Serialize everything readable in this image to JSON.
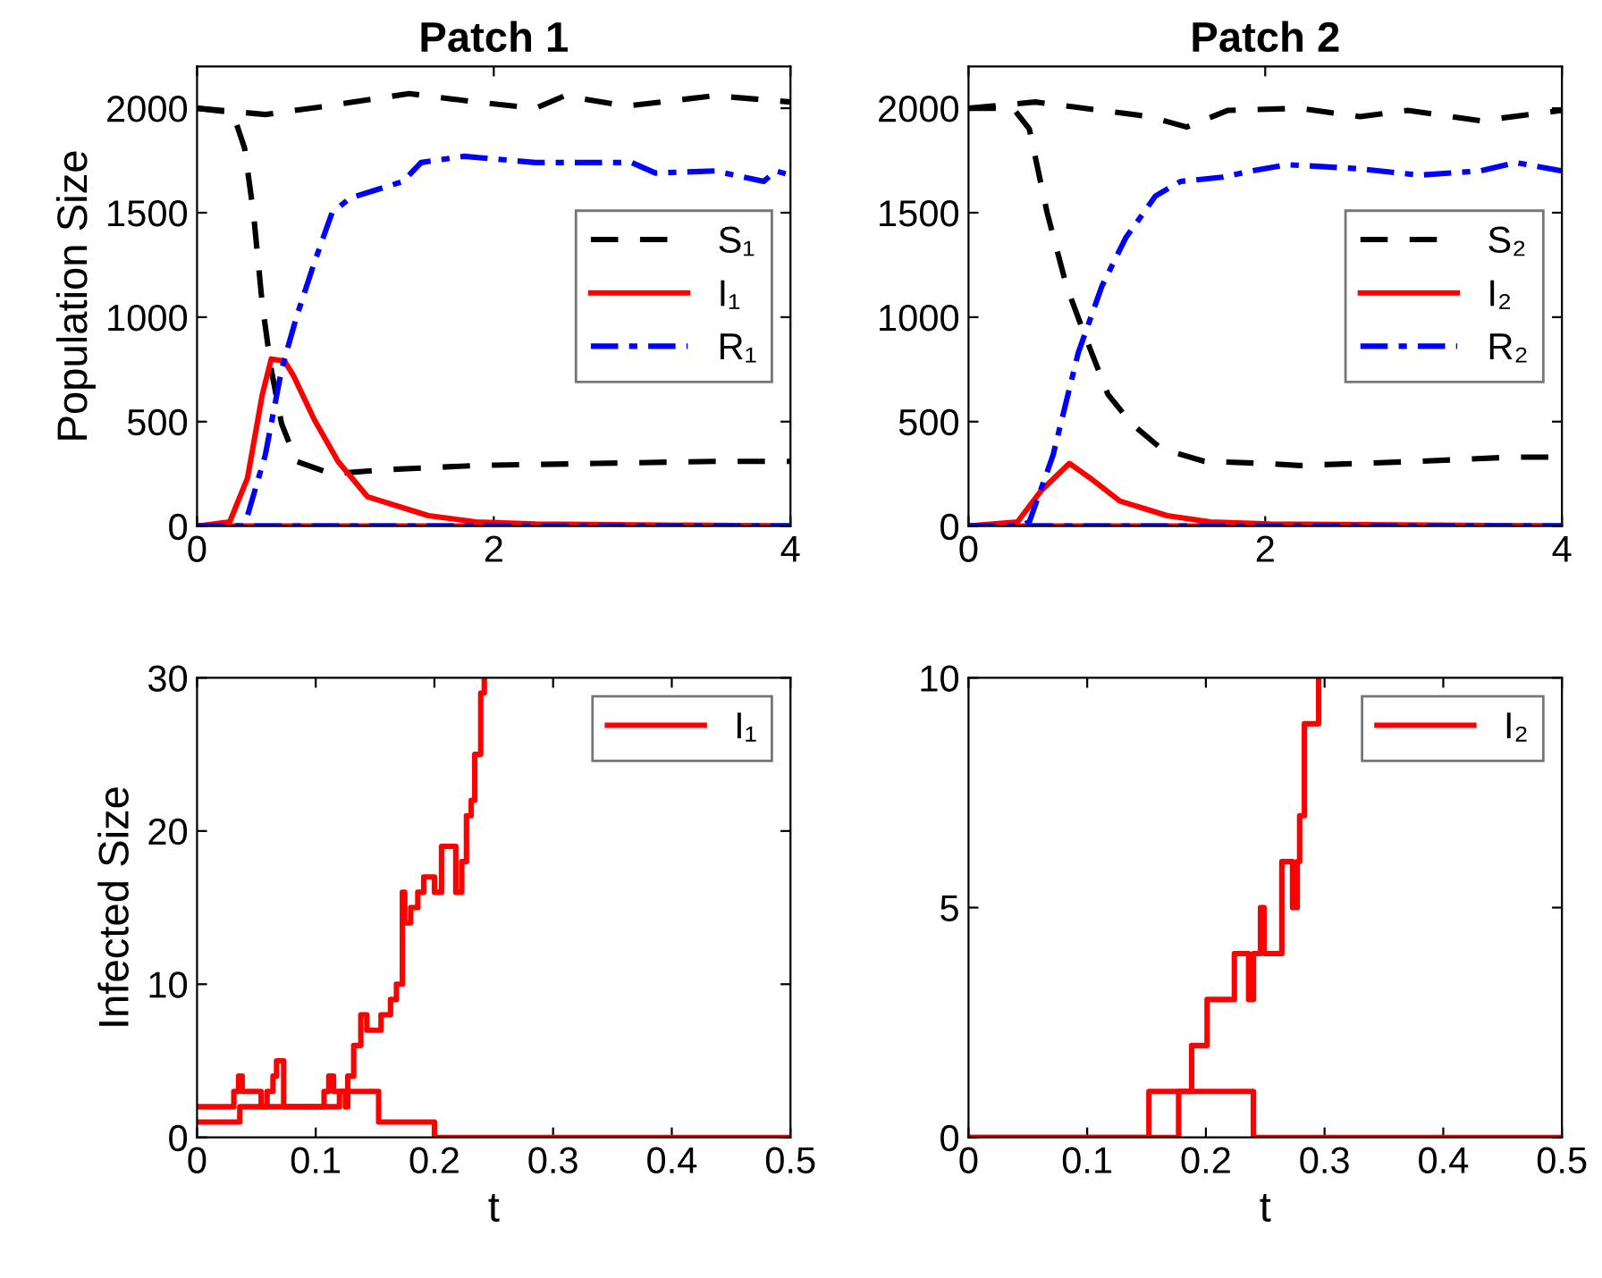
{
  "chart_data": [
    {
      "type": "line",
      "title": "Patch 1",
      "ylabel": "Population Size",
      "xlim": [
        0,
        4
      ],
      "ylim": [
        0,
        2200
      ],
      "xticks": [
        0,
        2,
        4
      ],
      "yticks": [
        0,
        500,
        1000,
        1500,
        2000
      ],
      "grid": false,
      "legend": "right",
      "series": [
        {
          "name": "S₁",
          "color": "#000000",
          "line_style": "dashed",
          "x": [
            0,
            0.24,
            0.32,
            0.38,
            0.44,
            0.5,
            0.57,
            0.67,
            0.91,
            1.27,
            1.88,
            2.69,
            3.49,
            4
          ],
          "values": [
            2000,
            1980,
            1810,
            1500,
            1060,
            750,
            490,
            310,
            250,
            270,
            290,
            300,
            310,
            310
          ]
        },
        {
          "name": "I₁",
          "color": "#ff0000",
          "line_style": "solid",
          "x": [
            0,
            0.22,
            0.34,
            0.44,
            0.5,
            0.59,
            0.65,
            0.79,
            0.95,
            1.15,
            1.56,
            1.88,
            2.28,
            4
          ],
          "values": [
            0,
            20,
            230,
            630,
            800,
            790,
            720,
            510,
            310,
            140,
            50,
            20,
            10,
            0
          ]
        },
        {
          "name": "R₁",
          "color": "#0000ff",
          "line_style": "dashdot",
          "x": [
            0,
            0.3,
            0.34,
            0.46,
            0.57,
            0.67,
            0.79,
            0.91,
            1.03,
            1.39,
            1.51,
            1.8,
            2.28,
            2.93,
            3.09,
            3.49,
            3.82,
            3.9,
            4
          ],
          "values": [
            0,
            0,
            50,
            340,
            750,
            1000,
            1260,
            1500,
            1570,
            1650,
            1740,
            1770,
            1740,
            1740,
            1690,
            1700,
            1650,
            1700,
            1680
          ]
        },
        {
          "color": "#000000",
          "line_style": "dashed",
          "x": [
            0,
            0.46,
            0.87,
            1.43,
            1.88,
            2.28,
            2.48,
            2.89,
            3.49,
            4
          ],
          "values": [
            2000,
            1970,
            2010,
            2070,
            2030,
            2000,
            2060,
            2010,
            2060,
            2030
          ]
        },
        {
          "color": "#ff0000",
          "line_style": "solid",
          "x": [
            0,
            4
          ],
          "values": [
            0,
            0
          ]
        },
        {
          "color": "#0000ff",
          "line_style": "dashdot",
          "x": [
            0,
            4
          ],
          "values": [
            0,
            0
          ]
        }
      ]
    },
    {
      "type": "line",
      "title": "Patch 2",
      "xlim": [
        0,
        4
      ],
      "ylim": [
        0,
        2200
      ],
      "xticks": [
        0,
        2,
        4
      ],
      "yticks": [
        0,
        500,
        1000,
        1500,
        2000
      ],
      "grid": false,
      "legend": "right",
      "series": [
        {
          "name": "S₂",
          "color": "#000000",
          "line_style": "dashed",
          "x": [
            0,
            0.3,
            0.41,
            0.53,
            0.66,
            0.78,
            0.94,
            1.1,
            1.3,
            1.59,
            1.99,
            2.23,
            3.04,
            3.65,
            4
          ],
          "values": [
            2000,
            2000,
            1900,
            1500,
            1150,
            920,
            630,
            490,
            370,
            310,
            300,
            290,
            310,
            330,
            330
          ]
        },
        {
          "name": "I₂",
          "color": "#ff0000",
          "line_style": "solid",
          "x": [
            0,
            0.33,
            0.49,
            0.68,
            0.82,
            1.02,
            1.34,
            1.63,
            2.03,
            4
          ],
          "values": [
            0,
            20,
            170,
            300,
            230,
            120,
            50,
            20,
            10,
            0
          ]
        },
        {
          "name": "R₂",
          "color": "#0000ff",
          "line_style": "dashdot",
          "x": [
            0,
            0.35,
            0.41,
            0.57,
            0.74,
            0.9,
            1.06,
            1.26,
            1.43,
            1.71,
            1.91,
            2.15,
            2.64,
            3.04,
            3.45,
            3.69,
            4
          ],
          "values": [
            0,
            0,
            20,
            340,
            830,
            1150,
            1380,
            1580,
            1650,
            1670,
            1700,
            1730,
            1710,
            1680,
            1700,
            1740,
            1700
          ]
        },
        {
          "color": "#000000",
          "line_style": "dashed",
          "x": [
            0,
            0.45,
            1.22,
            1.47,
            1.75,
            2.23,
            2.64,
            2.96,
            3.45,
            4
          ],
          "values": [
            2000,
            2030,
            1960,
            1910,
            1990,
            2000,
            1960,
            1990,
            1940,
            1990
          ]
        },
        {
          "color": "#ff0000",
          "line_style": "solid",
          "x": [
            0,
            4
          ],
          "values": [
            0,
            0
          ]
        },
        {
          "color": "#0000ff",
          "line_style": "dashdot",
          "x": [
            0,
            4
          ],
          "values": [
            0,
            0
          ]
        }
      ]
    },
    {
      "type": "step",
      "xlabel": "t",
      "ylabel": "Infected Size",
      "xlim": [
        0,
        0.5
      ],
      "ylim": [
        0,
        30
      ],
      "xticks": [
        0,
        0.1,
        0.2,
        0.3,
        0.4,
        0.5
      ],
      "yticks": [
        0,
        10,
        20,
        30
      ],
      "grid": false,
      "legend": "top right",
      "series": [
        {
          "name": "I₁",
          "color": "#ff0000",
          "line_style": "solid",
          "x": [
            0,
            0.031,
            0.035,
            0.038,
            0.054,
            0.059,
            0.064,
            0.067,
            0.073,
            0.107,
            0.111,
            0.115,
            0.125,
            0.127,
            0.132,
            0.138,
            0.143,
            0.155,
            0.163,
            0.168,
            0.173,
            0.175,
            0.18,
            0.186,
            0.191,
            0.2,
            0.206,
            0.218,
            0.223,
            0.227,
            0.231,
            0.234,
            0.239,
            0.242
          ],
          "values": [
            2,
            3,
            4,
            3,
            2,
            3,
            4,
            5,
            2,
            3,
            4,
            3,
            2,
            4,
            6,
            8,
            7,
            8,
            9,
            10,
            16,
            14,
            15,
            16,
            17,
            16,
            19,
            16,
            18,
            21,
            22,
            25,
            29,
            30
          ]
        },
        {
          "color": "#ff0000",
          "line_style": "solid",
          "x": [
            0,
            0.036,
            0.12,
            0.153,
            0.2,
            0.5
          ],
          "values": [
            1,
            2,
            3,
            1,
            0,
            0
          ]
        }
      ]
    },
    {
      "type": "step",
      "xlabel": "t",
      "xlim": [
        0,
        0.5
      ],
      "ylim": [
        0,
        10
      ],
      "xticks": [
        0,
        0.1,
        0.2,
        0.3,
        0.4,
        0.5
      ],
      "yticks": [
        0,
        5,
        10
      ],
      "grid": false,
      "legend": "top right",
      "series": [
        {
          "name": "I₂",
          "color": "#ff0000",
          "line_style": "solid",
          "x": [
            0,
            0.177,
            0.188,
            0.201,
            0.224,
            0.236,
            0.24,
            0.246,
            0.249,
            0.264,
            0.273,
            0.277,
            0.279,
            0.283,
            0.295
          ],
          "values": [
            0,
            1,
            2,
            3,
            4,
            3,
            4,
            5,
            4,
            6,
            5,
            6,
            7,
            9,
            10
          ]
        },
        {
          "color": "#ff0000",
          "line_style": "solid",
          "x": [
            0,
            0.152,
            0.24,
            0.5
          ],
          "values": [
            0,
            1,
            0,
            0
          ]
        }
      ]
    }
  ]
}
